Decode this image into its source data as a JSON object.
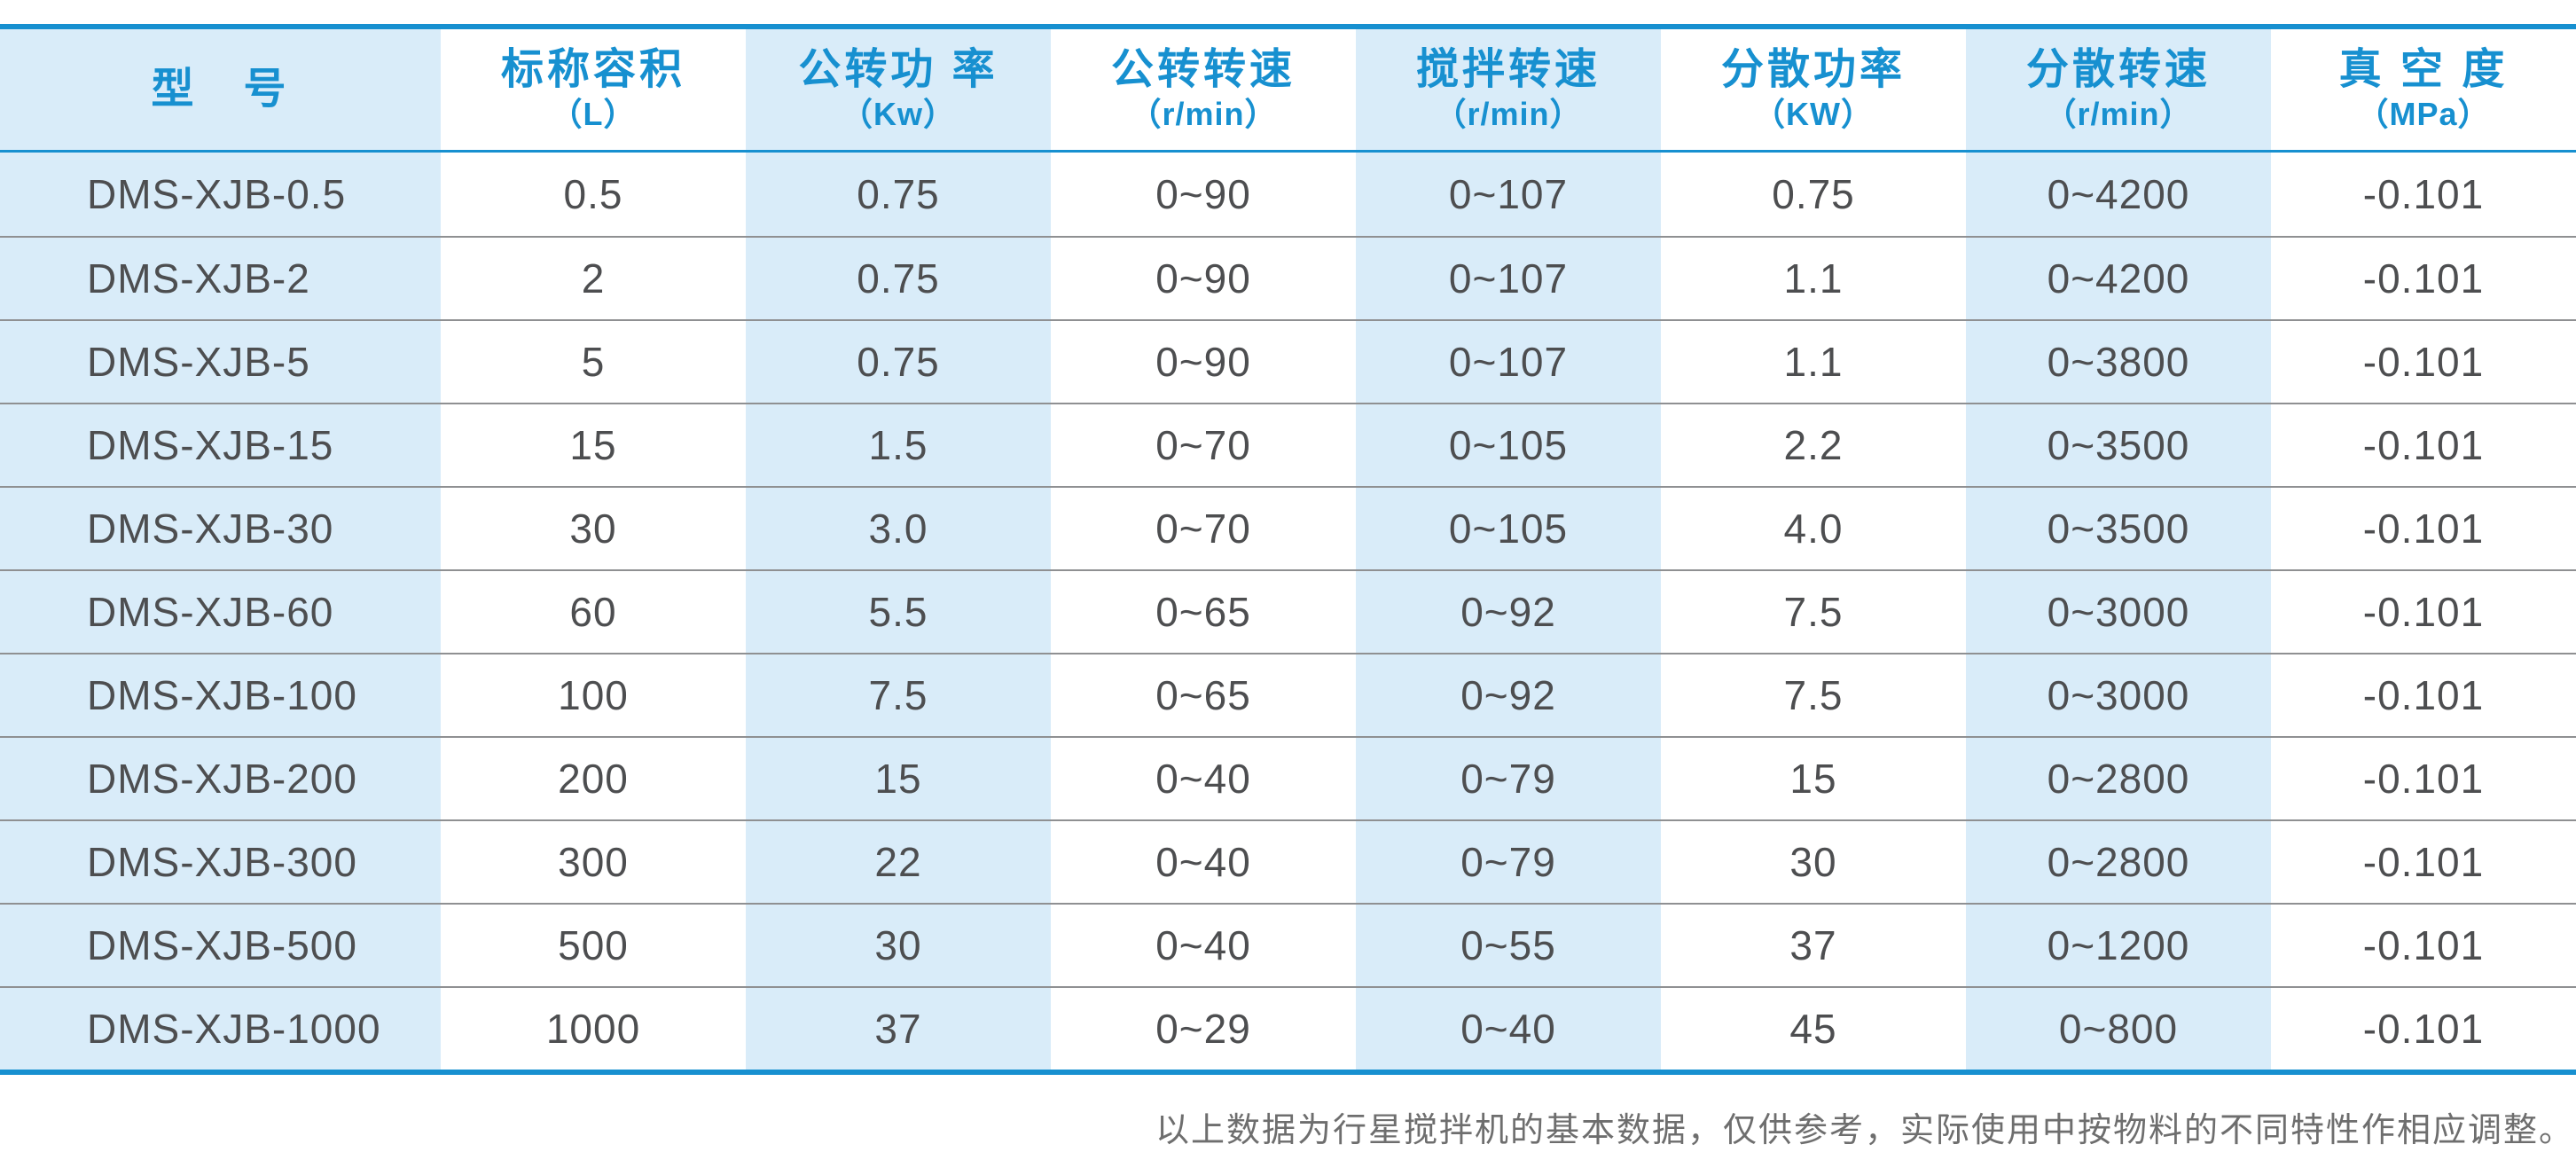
{
  "chart_data": {
    "type": "table",
    "title": "",
    "columns": [
      {
        "label": "型　号",
        "unit": ""
      },
      {
        "label": "标称容积",
        "unit": "（L）"
      },
      {
        "label": "公转功 率",
        "unit": "（Kw）"
      },
      {
        "label": "公转转速",
        "unit": "（r/min）"
      },
      {
        "label": "搅拌转速",
        "unit": "（r/min）"
      },
      {
        "label": "分散功率",
        "unit": "（KW）"
      },
      {
        "label": "分散转速",
        "unit": "（r/min）"
      },
      {
        "label": "真 空 度",
        "unit": "（MPa）"
      }
    ],
    "rows": [
      [
        "DMS-XJB-0.5",
        "0.5",
        "0.75",
        "0~90",
        "0~107",
        "0.75",
        "0~4200",
        "-0.101"
      ],
      [
        "DMS-XJB-2",
        "2",
        "0.75",
        "0~90",
        "0~107",
        "1.1",
        "0~4200",
        "-0.101"
      ],
      [
        "DMS-XJB-5",
        "5",
        "0.75",
        "0~90",
        "0~107",
        "1.1",
        "0~3800",
        "-0.101"
      ],
      [
        "DMS-XJB-15",
        "15",
        "1.5",
        "0~70",
        "0~105",
        "2.2",
        "0~3500",
        "-0.101"
      ],
      [
        "DMS-XJB-30",
        "30",
        "3.0",
        "0~70",
        "0~105",
        "4.0",
        "0~3500",
        "-0.101"
      ],
      [
        "DMS-XJB-60",
        "60",
        "5.5",
        "0~65",
        "0~92",
        "7.5",
        "0~3000",
        "-0.101"
      ],
      [
        "DMS-XJB-100",
        "100",
        "7.5",
        "0~65",
        "0~92",
        "7.5",
        "0~3000",
        "-0.101"
      ],
      [
        "DMS-XJB-200",
        "200",
        "15",
        "0~40",
        "0~79",
        "15",
        "0~2800",
        "-0.101"
      ],
      [
        "DMS-XJB-300",
        "300",
        "22",
        "0~40",
        "0~79",
        "30",
        "0~2800",
        "-0.101"
      ],
      [
        "DMS-XJB-500",
        "500",
        "30",
        "0~40",
        "0~55",
        "37",
        "0~1200",
        "-0.101"
      ],
      [
        "DMS-XJB-1000",
        "1000",
        "37",
        "0~29",
        "0~40",
        "45",
        "0~800",
        "-0.101"
      ]
    ],
    "footnote": "以上数据为行星搅拌机的基本数据，仅供参考，实际使用中按物料的不同特性作相应调整。"
  },
  "colors": {
    "accent_blue": "#1790d0",
    "stripe_blue": "#d9ecf9",
    "body_text": "#4d4e50",
    "divider_gray": "#8f9092",
    "footnote_gray": "#6e6e6e"
  }
}
